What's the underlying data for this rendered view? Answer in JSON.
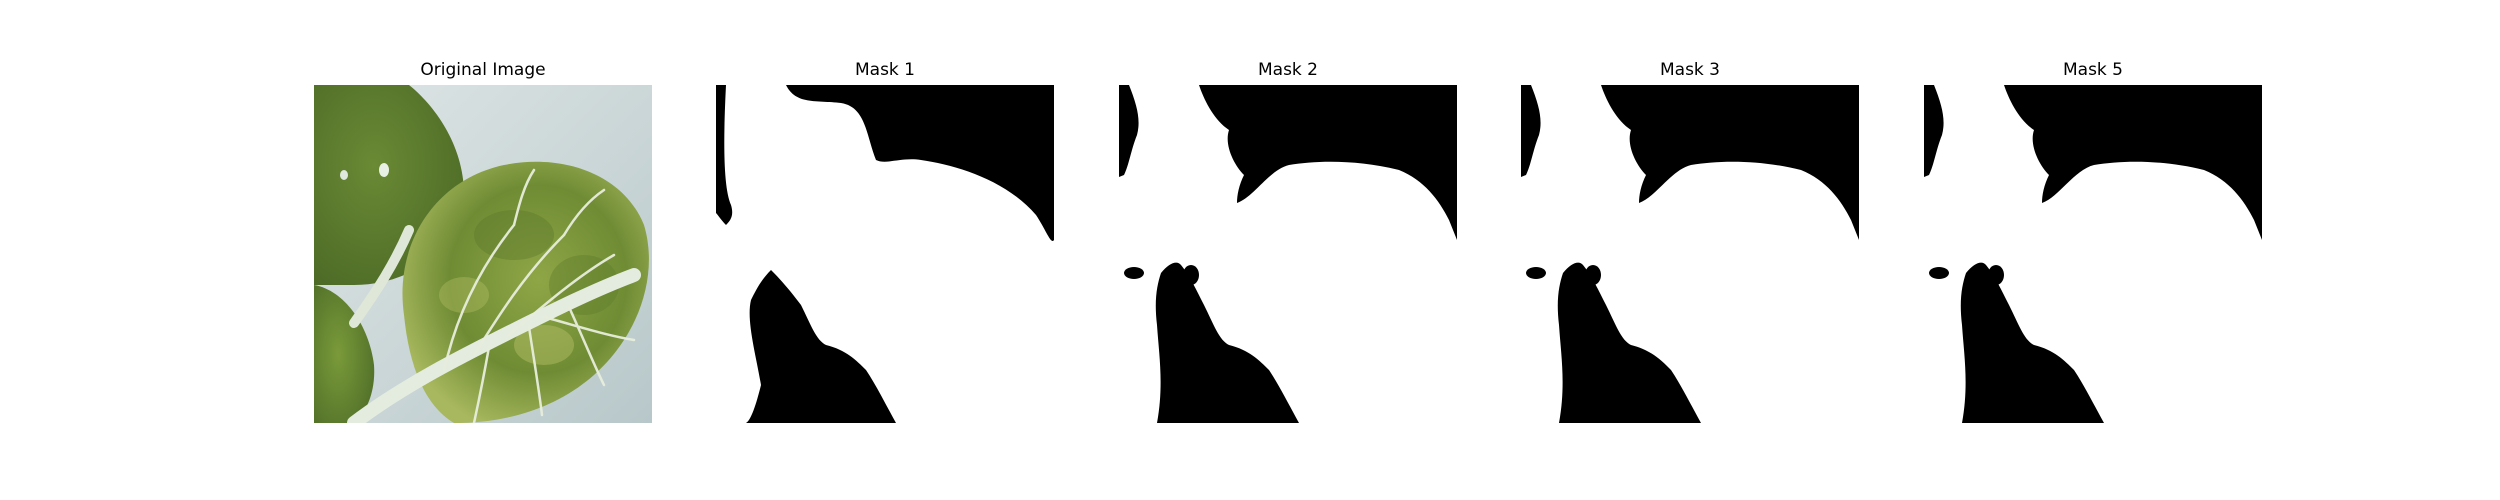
{
  "figure": {
    "panels": [
      {
        "title": "Original Image",
        "kind": "photo",
        "subject": "leafy green vegetable leaves"
      },
      {
        "title": "Mask 1",
        "kind": "mask",
        "mask_colors": {
          "foreground": "#ffffff",
          "background": "#000000"
        }
      },
      {
        "title": "Mask 2",
        "kind": "mask",
        "mask_colors": {
          "foreground": "#ffffff",
          "background": "#000000"
        }
      },
      {
        "title": "Mask 3",
        "kind": "mask",
        "mask_colors": {
          "foreground": "#ffffff",
          "background": "#000000"
        }
      },
      {
        "title": "Mask 5",
        "kind": "mask",
        "mask_colors": {
          "foreground": "#ffffff",
          "background": "#000000"
        }
      }
    ],
    "photo_colors": {
      "backdrop": "#c9d6d8",
      "leaf_dark": "#5a7a2e",
      "leaf_mid": "#7f9a3e",
      "leaf_light": "#a6b45a",
      "stem": "#dfe8d8"
    }
  }
}
